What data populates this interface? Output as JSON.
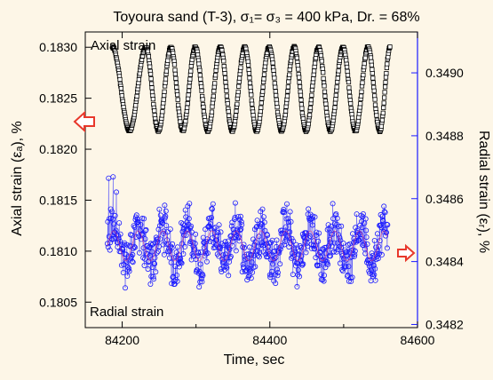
{
  "chart_data": {
    "type": "scatter",
    "title": "Toyoura sand (T-3), σ₁= σ₃ = 400 kPa, Dr. = 68%",
    "xlabel": "Time, sec",
    "ylabel_left": "Axial strain (εₐ), %",
    "ylabel_right": "Radial strain (εᵣ), %",
    "xlim": [
      84150,
      84600
    ],
    "ylim_left": [
      0.18025,
      0.18315
    ],
    "ylim_right": [
      0.34819,
      0.34913
    ],
    "x_ticks": [
      84200,
      84400,
      84600
    ],
    "x_tick_labels": [
      "84200",
      "84400",
      "84600"
    ],
    "y_left_ticks": [
      0.1805,
      0.181,
      0.1815,
      0.182,
      0.1825,
      0.183
    ],
    "y_left_tick_labels": [
      "0.1805",
      "0.1810",
      "0.1815",
      "0.1820",
      "0.1825",
      "0.1830"
    ],
    "y_right_ticks": [
      0.3482,
      0.3484,
      0.3486,
      0.3488,
      0.349
    ],
    "y_right_tick_labels": [
      "0.3482",
      "0.3484",
      "0.3486",
      "0.3488",
      "0.3490"
    ],
    "annotations": [
      "Axial strain",
      "Radial strain"
    ],
    "colors": {
      "axial": "#000000",
      "radial": "#1a1aff",
      "radial_trend": "#ff3366",
      "arrows": "#e8382b",
      "right_axis": "#1a1aff"
    },
    "series": [
      {
        "name": "Axial strain",
        "axis": "left",
        "marker": "square",
        "period_s": 33.3,
        "t_start": 84180,
        "t_end": 84563,
        "y_peak": 0.183,
        "y_trough": 0.18218,
        "peaks_t": [
          84187,
          84232,
          84266,
          84299,
          84333,
          84366,
          84399,
          84433,
          84466,
          84499,
          84533,
          84563
        ],
        "troughs_t": [
          84210,
          84249,
          84282,
          84316,
          84349,
          84382,
          84416,
          84449,
          84482,
          84516,
          84549
        ]
      },
      {
        "name": "Radial strain",
        "axis": "right",
        "marker": "circle",
        "period_s": 33.3,
        "t_start": 84180,
        "t_end": 84560,
        "y_mean": 0.34845,
        "y_amplitude": 6e-05,
        "y_min": 0.34826,
        "y_max": 0.34869
      }
    ]
  }
}
